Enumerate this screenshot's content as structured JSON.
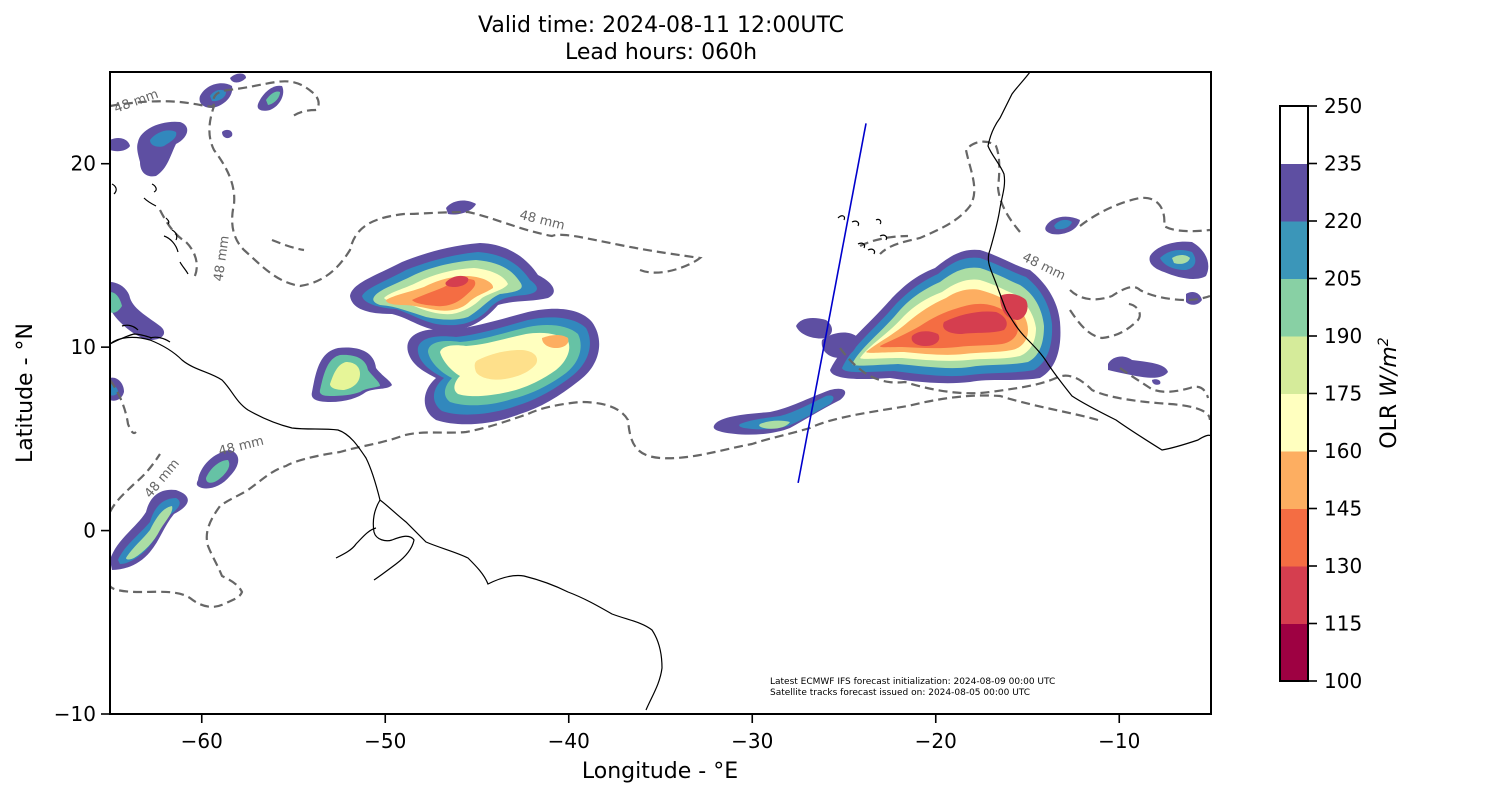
{
  "title": {
    "line1": "Valid time: 2024-08-11 12:00UTC",
    "line2": "Lead hours: 060h"
  },
  "map": {
    "projection": "PlateCarree",
    "lon_range": [
      -65,
      -5
    ],
    "lat_range": [
      -10,
      25
    ],
    "xlabel": "Longitude - °E",
    "ylabel": "Latitude - °N",
    "x_ticks": [
      {
        "value": -60,
        "label": "−60"
      },
      {
        "value": -50,
        "label": "−50"
      },
      {
        "value": -40,
        "label": "−40"
      },
      {
        "value": -30,
        "label": "−30"
      },
      {
        "value": -20,
        "label": "−20"
      },
      {
        "value": -10,
        "label": "−10"
      }
    ],
    "y_ticks": [
      {
        "value": 20,
        "label": "20"
      },
      {
        "value": 10,
        "label": "10"
      },
      {
        "value": 0,
        "label": "0"
      },
      {
        "value": -10,
        "label": "−10"
      }
    ],
    "contour_labels": [
      {
        "text": "48 mm",
        "lon": -63.5,
        "lat": 23.2,
        "angle": -20
      },
      {
        "text": "48 mm",
        "lon": -41.5,
        "lat": 16.7,
        "angle": 14
      },
      {
        "text": "48 mm",
        "lon": -58.7,
        "lat": 14.8,
        "angle": -82
      },
      {
        "text": "48 mm",
        "lon": -14.2,
        "lat": 14.2,
        "angle": 26
      },
      {
        "text": "48 mm",
        "lon": -57.8,
        "lat": 4.4,
        "angle": -14
      },
      {
        "text": "48 mm",
        "lon": -62.0,
        "lat": 2.7,
        "angle": -50
      }
    ],
    "satellite_track": {
      "start": {
        "lon": -27.5,
        "lat": 2.6
      },
      "end": {
        "lon": -23.8,
        "lat": 22.2
      },
      "color": "#0000cc"
    },
    "footnote_lines": [
      "Latest ECMWF IFS forecast initialization: 2024-08-09 00:00 UTC",
      "Satellite tracks forecast issued on: 2024-08-05 00:00 UTC"
    ]
  },
  "colorbar": {
    "label": "OLR W/m²",
    "levels": [
      100,
      115,
      130,
      145,
      160,
      175,
      190,
      205,
      220,
      235,
      250
    ],
    "colors": [
      "#9e0142",
      "#d53e4f",
      "#f46d43",
      "#fdae61",
      "#fee08b",
      "#ffffbf",
      "#e6f598",
      "#abdda4",
      "#66c2a5",
      "#3288bd",
      "#5e4fa2",
      "#ffffff"
    ],
    "band_colors": [
      "#9e0142",
      "#d53e4f",
      "#f46d43",
      "#fdae61",
      "#ffffbf",
      "#d5eb9a",
      "#88d0a4",
      "#3b96b9",
      "#5e4fa2",
      "#ffffff"
    ]
  }
}
